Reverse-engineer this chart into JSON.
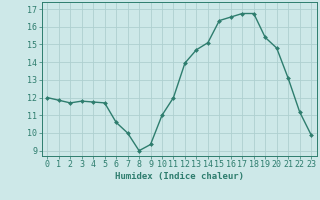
{
  "x": [
    0,
    1,
    2,
    3,
    4,
    5,
    6,
    7,
    8,
    9,
    10,
    11,
    12,
    13,
    14,
    15,
    16,
    17,
    18,
    19,
    20,
    21,
    22,
    23
  ],
  "y": [
    12.0,
    11.85,
    11.7,
    11.8,
    11.75,
    11.7,
    10.6,
    10.0,
    9.0,
    9.35,
    11.0,
    12.0,
    13.95,
    14.7,
    15.1,
    16.35,
    16.55,
    16.75,
    16.75,
    15.4,
    14.8,
    13.1,
    11.2,
    9.9
  ],
  "xlabel": "Humidex (Indice chaleur)",
  "xlim": [
    -0.5,
    23.5
  ],
  "ylim": [
    8.7,
    17.4
  ],
  "yticks": [
    9,
    10,
    11,
    12,
    13,
    14,
    15,
    16,
    17
  ],
  "xticks": [
    0,
    1,
    2,
    3,
    4,
    5,
    6,
    7,
    8,
    9,
    10,
    11,
    12,
    13,
    14,
    15,
    16,
    17,
    18,
    19,
    20,
    21,
    22,
    23
  ],
  "line_color": "#2e7d6e",
  "marker": "D",
  "marker_size": 2.0,
  "line_width": 1.0,
  "bg_color": "#cde8e8",
  "grid_color": "#aed0d0",
  "label_color": "#2e7d6e",
  "xlabel_fontsize": 6.5,
  "tick_fontsize": 6.0
}
